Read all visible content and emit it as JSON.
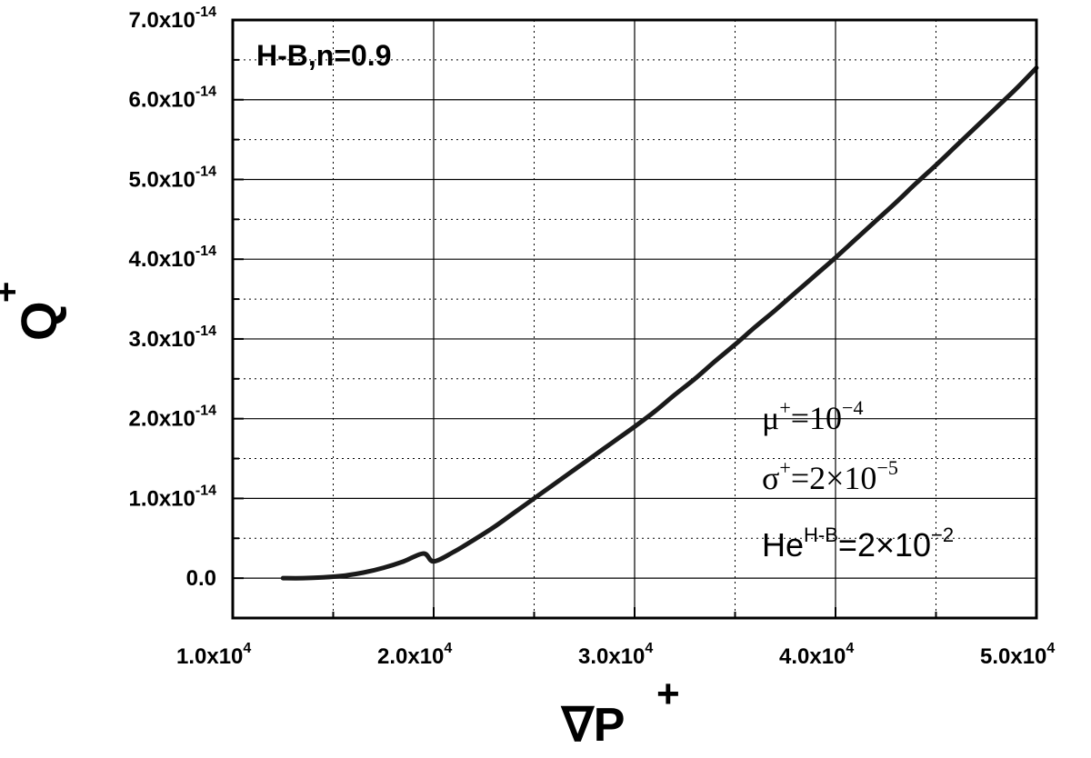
{
  "chart_data": {
    "type": "line",
    "title": "",
    "xlabel": "∇P",
    "xlabel_sup": "+",
    "ylabel": "Q",
    "ylabel_sup": "+",
    "xlim": [
      10000,
      50000
    ],
    "ylim": [
      -5e-15,
      7e-14
    ],
    "grid": true,
    "x_ticks": [
      {
        "value": 10000,
        "mantissa": "1.0x10",
        "exp": "4"
      },
      {
        "value": 20000,
        "mantissa": "2.0x10",
        "exp": "4"
      },
      {
        "value": 30000,
        "mantissa": "3.0x10",
        "exp": "4"
      },
      {
        "value": 40000,
        "mantissa": "4.0x10",
        "exp": "4"
      },
      {
        "value": 50000,
        "mantissa": "5.0x10",
        "exp": "4"
      }
    ],
    "y_ticks": [
      {
        "value": 0,
        "mantissa": "0.0",
        "exp": ""
      },
      {
        "value": 1e-14,
        "mantissa": "1.0x10",
        "exp": "-14"
      },
      {
        "value": 2e-14,
        "mantissa": "2.0x10",
        "exp": "-14"
      },
      {
        "value": 3e-14,
        "mantissa": "3.0x10",
        "exp": "-14"
      },
      {
        "value": 4e-14,
        "mantissa": "4.0x10",
        "exp": "-14"
      },
      {
        "value": 5e-14,
        "mantissa": "5.0x10",
        "exp": "-14"
      },
      {
        "value": 6e-14,
        "mantissa": "6.0x10",
        "exp": "-14"
      },
      {
        "value": 7e-14,
        "mantissa": "7.0x10",
        "exp": "-14"
      }
    ],
    "series": [
      {
        "color": "#1a1a1a",
        "x": [
          12500,
          13500,
          14500,
          15500,
          16500,
          17500,
          18500,
          19500,
          20000,
          21000,
          22000,
          23000,
          24000,
          25000,
          26000,
          27000,
          28000,
          29000,
          30000,
          31000,
          32000,
          33000,
          34000,
          35000,
          36000,
          37000,
          38000,
          39000,
          40000,
          41000,
          42000,
          43000,
          44000,
          45000,
          46000,
          47000,
          48000,
          49000,
          50000
        ],
        "y": [
          0,
          0,
          1e-16,
          3e-16,
          7e-16,
          1.3e-15,
          2.1e-15,
          3.1e-15,
          2.1e-15,
          3.3e-15,
          4.8e-15,
          6.4e-15,
          8.2e-15,
          1e-14,
          1.18e-14,
          1.36e-14,
          1.54e-14,
          1.72e-14,
          1.9e-14,
          2.09e-14,
          2.3e-14,
          2.5e-14,
          2.72e-14,
          2.93e-14,
          3.15e-14,
          3.36e-14,
          3.58e-14,
          3.8e-14,
          4.02e-14,
          4.25e-14,
          4.48e-14,
          4.71e-14,
          4.95e-14,
          5.18e-14,
          5.42e-14,
          5.66e-14,
          5.9e-14,
          6.14e-14,
          6.4e-14
        ]
      }
    ],
    "panel_label": "H-B,n=0.9",
    "annotations": [
      {
        "base": "μ",
        "sup": "+",
        "rest": "=10",
        "rest_sup": "−4"
      },
      {
        "base": "σ",
        "sup": "+",
        "rest": "=2×10",
        "rest_sup": "−5"
      },
      {
        "base": "He",
        "sup": "H-B",
        "rest": "=2×10",
        "rest_sup": "−2"
      }
    ]
  }
}
